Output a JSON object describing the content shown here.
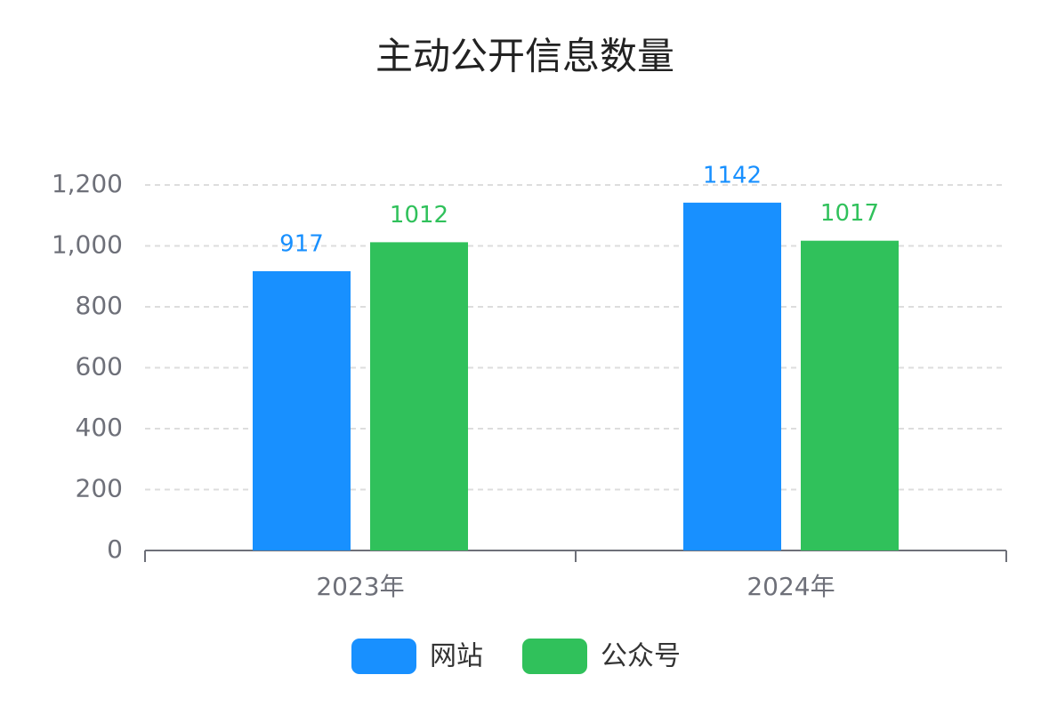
{
  "chart_data": {
    "type": "bar",
    "title": "主动公开信息数量",
    "categories": [
      "2023年",
      "2024年"
    ],
    "series": [
      {
        "name": "网站",
        "color": "#1890ff",
        "values": [
          917,
          1142
        ]
      },
      {
        "name": "公众号",
        "color": "#30c15b",
        "values": [
          1012,
          1017
        ]
      }
    ],
    "ylim": [
      0,
      1200
    ],
    "yticks": [
      0,
      200,
      400,
      600,
      800,
      {
        "value": 1000,
        "label": "1,000"
      },
      {
        "value": 1200,
        "label": "1,200"
      }
    ],
    "grid": true,
    "legend": "bottom"
  }
}
